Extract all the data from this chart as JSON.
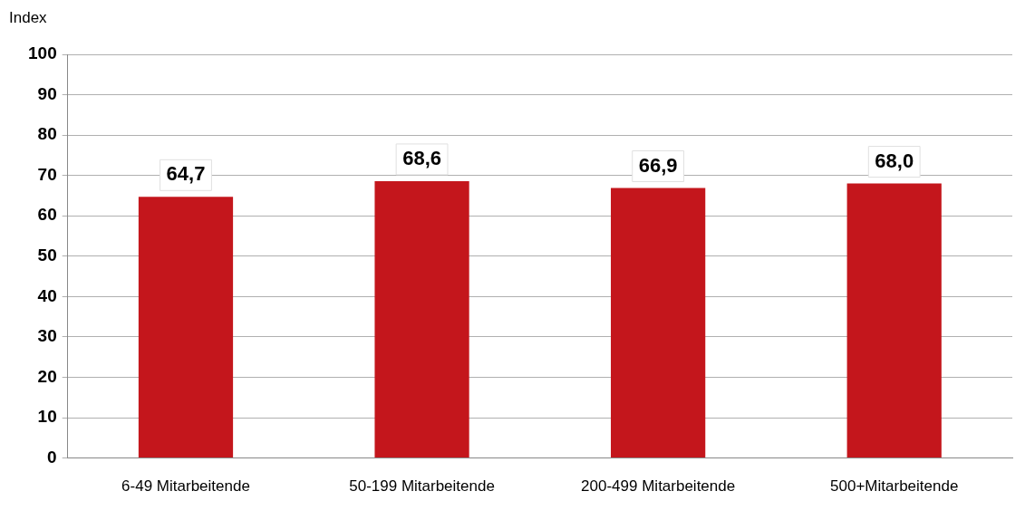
{
  "chart_data": {
    "type": "bar",
    "ylabel": "Index",
    "categories": [
      "6-49 Mitarbeitende",
      "50-199 Mitarbeitende",
      "200-499 Mitarbeitende",
      "500+Mitarbeitende"
    ],
    "values": [
      64.7,
      68.6,
      66.9,
      68.0
    ],
    "value_labels": [
      "64,7",
      "68,6",
      "66,9",
      "68,0"
    ],
    "color": "#c4161c",
    "ylim": [
      0,
      100
    ],
    "yticks": [
      0,
      10,
      20,
      30,
      40,
      50,
      60,
      70,
      80,
      90,
      100
    ],
    "grid": "y",
    "legend": false
  }
}
